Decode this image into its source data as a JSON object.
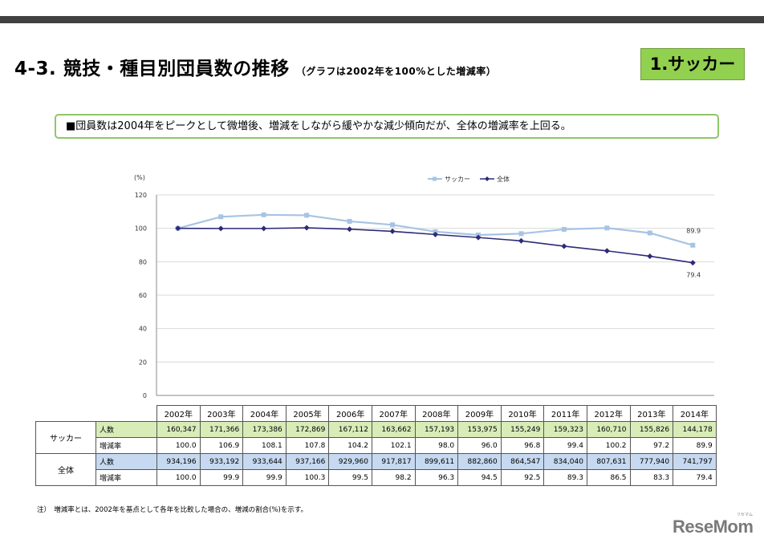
{
  "header": {
    "title": "4-3.  競技・種目別団員数の推移",
    "subtitle": "（グラフは2002年を100%とした増減率）",
    "badge": "1.サッカー"
  },
  "summary": "■団員数は2004年をピークとして微増後、増減をしながら緩やかな減少傾向だが、全体の増減率を上回る。",
  "chart_data": {
    "type": "line",
    "ylabel": "(%)",
    "ylim": [
      0,
      120
    ],
    "yticks": [
      0,
      20,
      40,
      60,
      80,
      100,
      120
    ],
    "categories": [
      "2002年",
      "2003年",
      "2004年",
      "2005年",
      "2006年",
      "2007年",
      "2008年",
      "2009年",
      "2010年",
      "2011年",
      "2012年",
      "2013年",
      "2014年"
    ],
    "series": [
      {
        "name": "サッカー",
        "color": "#a6c4e4",
        "values": [
          100.0,
          106.9,
          108.1,
          107.8,
          104.2,
          102.1,
          98.0,
          96.0,
          96.8,
          99.4,
          100.2,
          97.2,
          89.9
        ],
        "end_label": "89.9"
      },
      {
        "name": "全体",
        "color": "#2e2a78",
        "values": [
          100.0,
          99.9,
          99.9,
          100.3,
          99.5,
          98.2,
          96.3,
          94.5,
          92.5,
          89.3,
          86.5,
          83.3,
          79.4
        ],
        "end_label": "79.4"
      }
    ],
    "legend": "top-right"
  },
  "table": {
    "years": [
      "2002年",
      "2003年",
      "2004年",
      "2005年",
      "2006年",
      "2007年",
      "2008年",
      "2009年",
      "2010年",
      "2011年",
      "2012年",
      "2013年",
      "2014年"
    ],
    "groups": [
      {
        "name": "サッカー",
        "people_label": "人数",
        "rate_label": "増減率",
        "people": [
          "160,347",
          "171,366",
          "173,386",
          "172,869",
          "167,112",
          "163,662",
          "157,193",
          "153,975",
          "155,249",
          "159,323",
          "160,710",
          "155,826",
          "144,178"
        ],
        "rate": [
          "100.0",
          "106.9",
          "108.1",
          "107.8",
          "104.2",
          "102.1",
          "98.0",
          "96.0",
          "96.8",
          "99.4",
          "100.2",
          "97.2",
          "89.9"
        ]
      },
      {
        "name": "全体",
        "people_label": "人数",
        "rate_label": "増減率",
        "people": [
          "934,196",
          "933,192",
          "933,644",
          "937,166",
          "929,960",
          "917,817",
          "899,611",
          "882,860",
          "864,547",
          "834,040",
          "807,631",
          "777,940",
          "741,797"
        ],
        "rate": [
          "100.0",
          "99.9",
          "99.9",
          "100.3",
          "99.5",
          "98.2",
          "96.3",
          "94.5",
          "92.5",
          "89.3",
          "86.5",
          "83.3",
          "79.4"
        ]
      }
    ]
  },
  "note": "注）　増減率とは、2002年を基点として各年を比較した場合の、増減の割合(%)を示す。",
  "logo": {
    "text": "ReseMom",
    "ruby": "リセマム"
  }
}
